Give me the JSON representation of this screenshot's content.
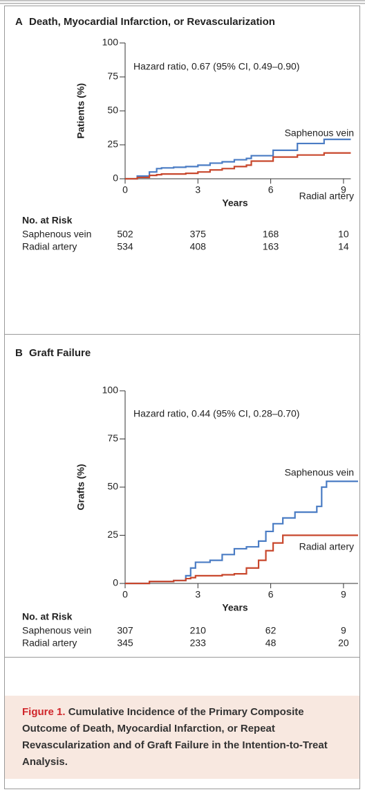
{
  "chart_data": [
    {
      "type": "line",
      "label": "A",
      "title": "Death, Myocardial Infarction, or Revascularization",
      "annotation": "Hazard ratio, 0.67 (95% CI, 0.49–0.90)",
      "ylabel": "Patients (%)",
      "xlabel": "Years",
      "drawstyle": "steps-post",
      "x": [
        0,
        0.5,
        1,
        1.3,
        1.5,
        2,
        2.5,
        3,
        3.5,
        4,
        4.5,
        5,
        5.2,
        6,
        6.1,
        7,
        7.1,
        8,
        8.2,
        9.3
      ],
      "series": [
        {
          "name": "Saphenous vein",
          "color": "#4a7cc4",
          "values": [
            0,
            2,
            5,
            7.5,
            8,
            8.5,
            9,
            10,
            11.5,
            12.5,
            14,
            15,
            17,
            17,
            21,
            21,
            26,
            26,
            29,
            29
          ]
        },
        {
          "name": "Radial artery",
          "color": "#c8472c",
          "values": [
            0,
            1,
            2.5,
            3,
            3.5,
            3.5,
            4,
            5,
            6.5,
            7.5,
            9,
            10,
            13,
            13,
            16,
            16,
            17.5,
            17.5,
            19,
            19
          ]
        }
      ],
      "xlim": [
        0,
        9.3
      ],
      "ylim": [
        0,
        100
      ],
      "xticks": [
        0,
        3,
        6,
        9
      ],
      "yticks": [
        0,
        25,
        50,
        75,
        100
      ],
      "risk_table": {
        "title": "No. at Risk",
        "rows": [
          {
            "label": "Saphenous vein",
            "values": [
              502,
              375,
              168,
              10
            ]
          },
          {
            "label": "Radial artery",
            "values": [
              534,
              408,
              163,
              14
            ]
          }
        ]
      }
    },
    {
      "type": "line",
      "label": "B",
      "title": "Graft Failure",
      "annotation": "Hazard ratio, 0.44 (95% CI, 0.28–0.70)",
      "ylabel": "Grafts (%)",
      "xlabel": "Years",
      "drawstyle": "steps-post",
      "x": [
        0,
        1,
        2,
        2.5,
        2.7,
        2.9,
        3.5,
        4,
        4.5,
        5,
        5.5,
        5.8,
        6.1,
        6.5,
        7,
        7.9,
        8.1,
        8.3,
        9.6
      ],
      "series": [
        {
          "name": "Saphenous vein",
          "color": "#4a7cc4",
          "values": [
            0,
            1,
            1.5,
            4,
            8,
            11,
            12,
            15,
            18,
            19,
            22,
            27,
            31,
            34,
            37,
            40,
            50,
            53,
            53
          ]
        },
        {
          "name": "Radial artery",
          "color": "#c8472c",
          "values": [
            0,
            1,
            1.5,
            2.5,
            3,
            4,
            4,
            4.5,
            5,
            8,
            12,
            17,
            21,
            25,
            25,
            25,
            25,
            25,
            25
          ]
        }
      ],
      "xlim": [
        0,
        9.6
      ],
      "ylim": [
        0,
        100
      ],
      "xticks": [
        0,
        3,
        6,
        9
      ],
      "yticks": [
        0,
        25,
        50,
        75,
        100
      ],
      "risk_table": {
        "title": "No. at Risk",
        "rows": [
          {
            "label": "Saphenous vein",
            "values": [
              307,
              210,
              62,
              9
            ]
          },
          {
            "label": "Radial artery",
            "values": [
              345,
              233,
              48,
              20
            ]
          }
        ]
      }
    }
  ],
  "caption": {
    "label": "Figure 1.",
    "text": "Cumulative Incidence of the Primary Composite Outcome of Death, Myocardial Infarction, or Repeat Revascularization and of Graft Failure in the Intention-to-Treat Analysis."
  }
}
